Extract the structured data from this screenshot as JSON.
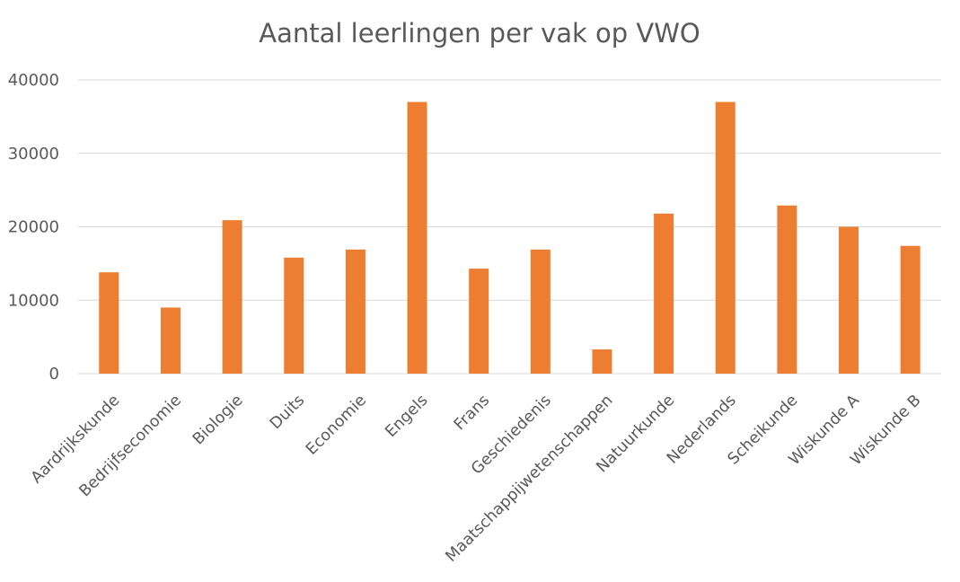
{
  "chart_data": {
    "type": "bar",
    "title": "Aantal leerlingen per vak op VWO",
    "xlabel": "",
    "ylabel": "",
    "categories": [
      "Aardrijkskunde",
      "Bedrijfseconomie",
      "Biologie",
      "Duits",
      "Economie",
      "Engels",
      "Frans",
      "Geschiedenis",
      "Maatschappijwetenschappen",
      "Natuurkunde",
      "Nederlands",
      "Scheikunde",
      "Wiskunde A",
      "Wiskunde B"
    ],
    "series": [
      {
        "values": [
          13800,
          9000,
          20900,
          15800,
          16900,
          37000,
          14300,
          16900,
          3300,
          21800,
          37000,
          22900,
          20000,
          17400
        ]
      }
    ],
    "ylim": [
      0,
      40000
    ],
    "yticks": [
      "0",
      "10000",
      "20000",
      "30000",
      "40000"
    ],
    "grid": true,
    "legend": "none",
    "bar_color": "#ed7d31"
  }
}
